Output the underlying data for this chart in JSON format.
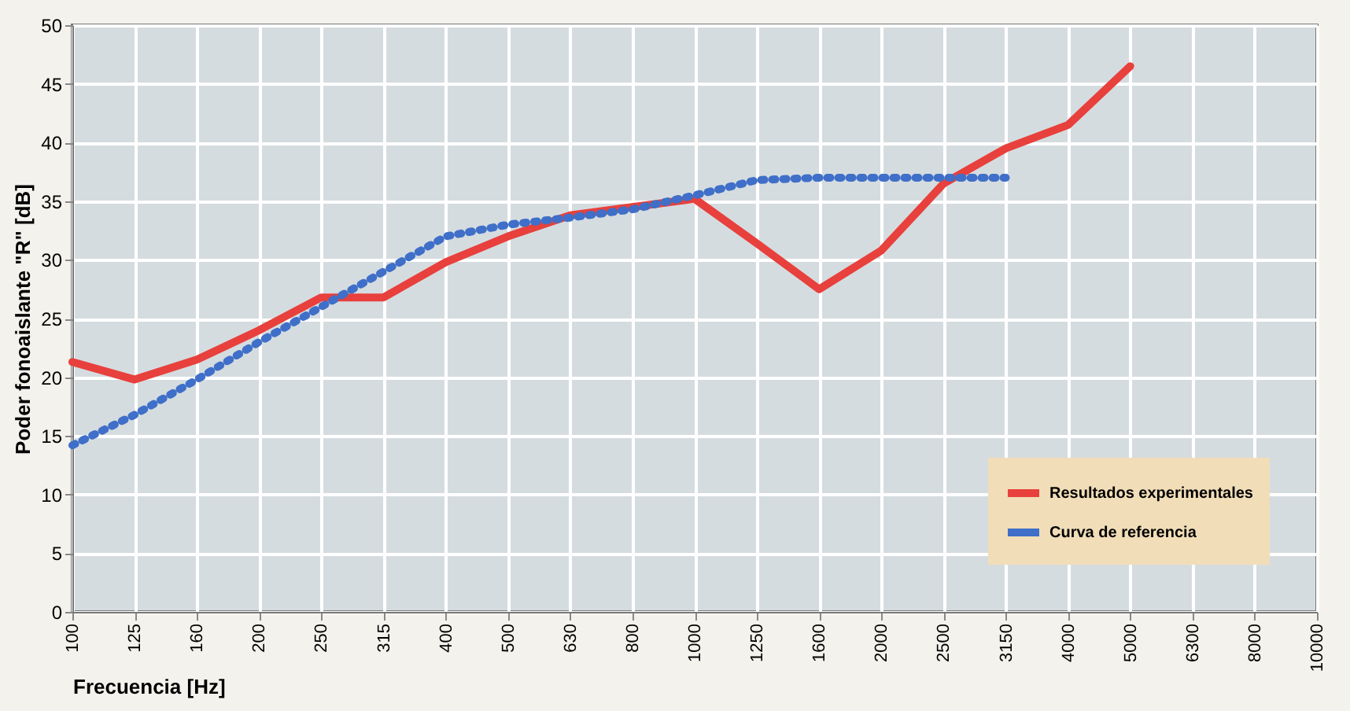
{
  "chart_data": {
    "type": "line",
    "xlabel": "Frecuencia [Hz]",
    "ylabel": "Poder fonoaislante \"R\" [dB]",
    "categories": [
      "100",
      "125",
      "160",
      "200",
      "250",
      "315",
      "400",
      "500",
      "630",
      "800",
      "1000",
      "1250",
      "1600",
      "2000",
      "2500",
      "3150",
      "4000",
      "5000",
      "6300",
      "8000",
      "10000"
    ],
    "series": [
      {
        "name": "Resultados experimentales",
        "color": "#e8403c",
        "line_style": "solid",
        "values": [
          21.3,
          19.8,
          21.5,
          24,
          26.8,
          26.8,
          29.8,
          32,
          33.8,
          34.5,
          35.2,
          31.4,
          27.5,
          30.8,
          36.5,
          39.5,
          41.5,
          46.5,
          null,
          null,
          null
        ]
      },
      {
        "name": "Curva de referencia",
        "color": "#3f6fc8",
        "line_style": "dotted",
        "values": [
          14.2,
          16.8,
          19.8,
          23,
          26,
          29,
          32,
          33,
          33.6,
          34.3,
          35.5,
          36.8,
          37,
          37,
          37,
          37,
          null,
          null,
          null,
          null,
          null
        ]
      }
    ],
    "ylim": [
      0,
      50
    ],
    "yticks": [
      0,
      5,
      10,
      15,
      20,
      25,
      30,
      35,
      40,
      45,
      50
    ],
    "grid": true,
    "legend": "bottom right",
    "marker": "none"
  }
}
